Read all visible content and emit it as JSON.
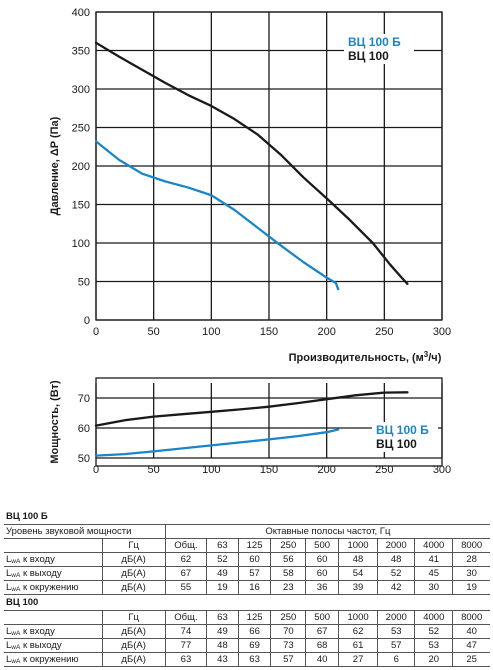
{
  "chart_data": [
    {
      "type": "line",
      "ylabel": "Давление, ΔP (Па)",
      "xlabel": "Производительность, (м",
      "xlabel_sup": "3",
      "xlabel_tail": "/ч)",
      "xlim": [
        0,
        300
      ],
      "ylim": [
        0,
        400
      ],
      "xticks": [
        0,
        50,
        100,
        150,
        200,
        250,
        300
      ],
      "yticks": [
        0,
        50,
        100,
        150,
        200,
        250,
        300,
        350,
        400
      ],
      "grid": true,
      "legend": "top-right",
      "series": [
        {
          "name": "ВЦ 100 Б",
          "color": "#1a86c8",
          "x": [
            0,
            20,
            40,
            60,
            80,
            100,
            120,
            140,
            160,
            180,
            200,
            208,
            210
          ],
          "y": [
            232,
            208,
            190,
            180,
            172,
            162,
            143,
            120,
            97,
            75,
            55,
            48,
            40
          ]
        },
        {
          "name": "ВЦ 100",
          "color": "#1a1a1a",
          "x": [
            0,
            20,
            40,
            60,
            80,
            100,
            120,
            140,
            160,
            180,
            200,
            220,
            240,
            255,
            265,
            270
          ],
          "y": [
            360,
            342,
            325,
            308,
            292,
            278,
            261,
            241,
            215,
            185,
            158,
            130,
            100,
            72,
            55,
            47
          ]
        }
      ]
    },
    {
      "type": "line",
      "ylabel": "Мощность, (Вт)",
      "xlim": [
        0,
        300
      ],
      "ylim": [
        50,
        75
      ],
      "xticks": [
        0,
        50,
        100,
        150,
        200,
        250,
        300
      ],
      "yticks": [
        50,
        60,
        70
      ],
      "grid": true,
      "legend": "right",
      "series": [
        {
          "name": "ВЦ 100 Б",
          "color": "#1a86c8",
          "x": [
            0,
            25,
            50,
            75,
            100,
            125,
            150,
            175,
            200,
            210
          ],
          "y": [
            50.8,
            51.3,
            52.2,
            53.2,
            54.2,
            55.2,
            56.2,
            57.3,
            58.6,
            59.5
          ]
        },
        {
          "name": "ВЦ 100",
          "color": "#1a1a1a",
          "x": [
            0,
            25,
            50,
            75,
            100,
            125,
            150,
            175,
            200,
            225,
            250,
            270
          ],
          "y": [
            60.8,
            62.6,
            63.8,
            64.6,
            65.4,
            66.2,
            67.1,
            68.3,
            69.6,
            70.9,
            71.8,
            71.9
          ]
        }
      ]
    }
  ],
  "tables": {
    "vc100b": {
      "title": "ВЦ 100 Б",
      "subtitle": "Уровень звуковой мощности",
      "band_header": "Октавные полосы частот, Гц",
      "hz": "Гц",
      "freqs": [
        "Общ.",
        "63",
        "125",
        "250",
        "500",
        "1000",
        "2000",
        "4000",
        "8000"
      ],
      "rows": [
        {
          "label": "к входу",
          "unit": "дБ(A)",
          "values": [
            "62",
            "52",
            "60",
            "56",
            "60",
            "48",
            "48",
            "41",
            "28"
          ]
        },
        {
          "label": "к выходу",
          "unit": "дБ(A)",
          "values": [
            "67",
            "49",
            "57",
            "58",
            "60",
            "54",
            "52",
            "45",
            "30"
          ]
        },
        {
          "label": "к окружению",
          "unit": "дБ(A)",
          "values": [
            "55",
            "19",
            "16",
            "23",
            "36",
            "39",
            "42",
            "30",
            "19"
          ]
        }
      ]
    },
    "vc100": {
      "title": "ВЦ 100",
      "hz": "Гц",
      "freqs": [
        "Общ.",
        "63",
        "125",
        "250",
        "500",
        "1000",
        "2000",
        "4000",
        "8000"
      ],
      "rows": [
        {
          "label": "к входу",
          "unit": "дБ(A)",
          "values": [
            "74",
            "49",
            "66",
            "70",
            "67",
            "62",
            "53",
            "52",
            "40"
          ]
        },
        {
          "label": "к выходу",
          "unit": "дБ(A)",
          "values": [
            "77",
            "48",
            "69",
            "73",
            "68",
            "61",
            "57",
            "53",
            "47"
          ]
        },
        {
          "label": "к окружению",
          "unit": "дБ(A)",
          "values": [
            "63",
            "43",
            "63",
            "57",
            "40",
            "27",
            "6",
            "20",
            "25"
          ]
        }
      ]
    },
    "lwa_main": "L",
    "lwa_sub": "wA"
  }
}
